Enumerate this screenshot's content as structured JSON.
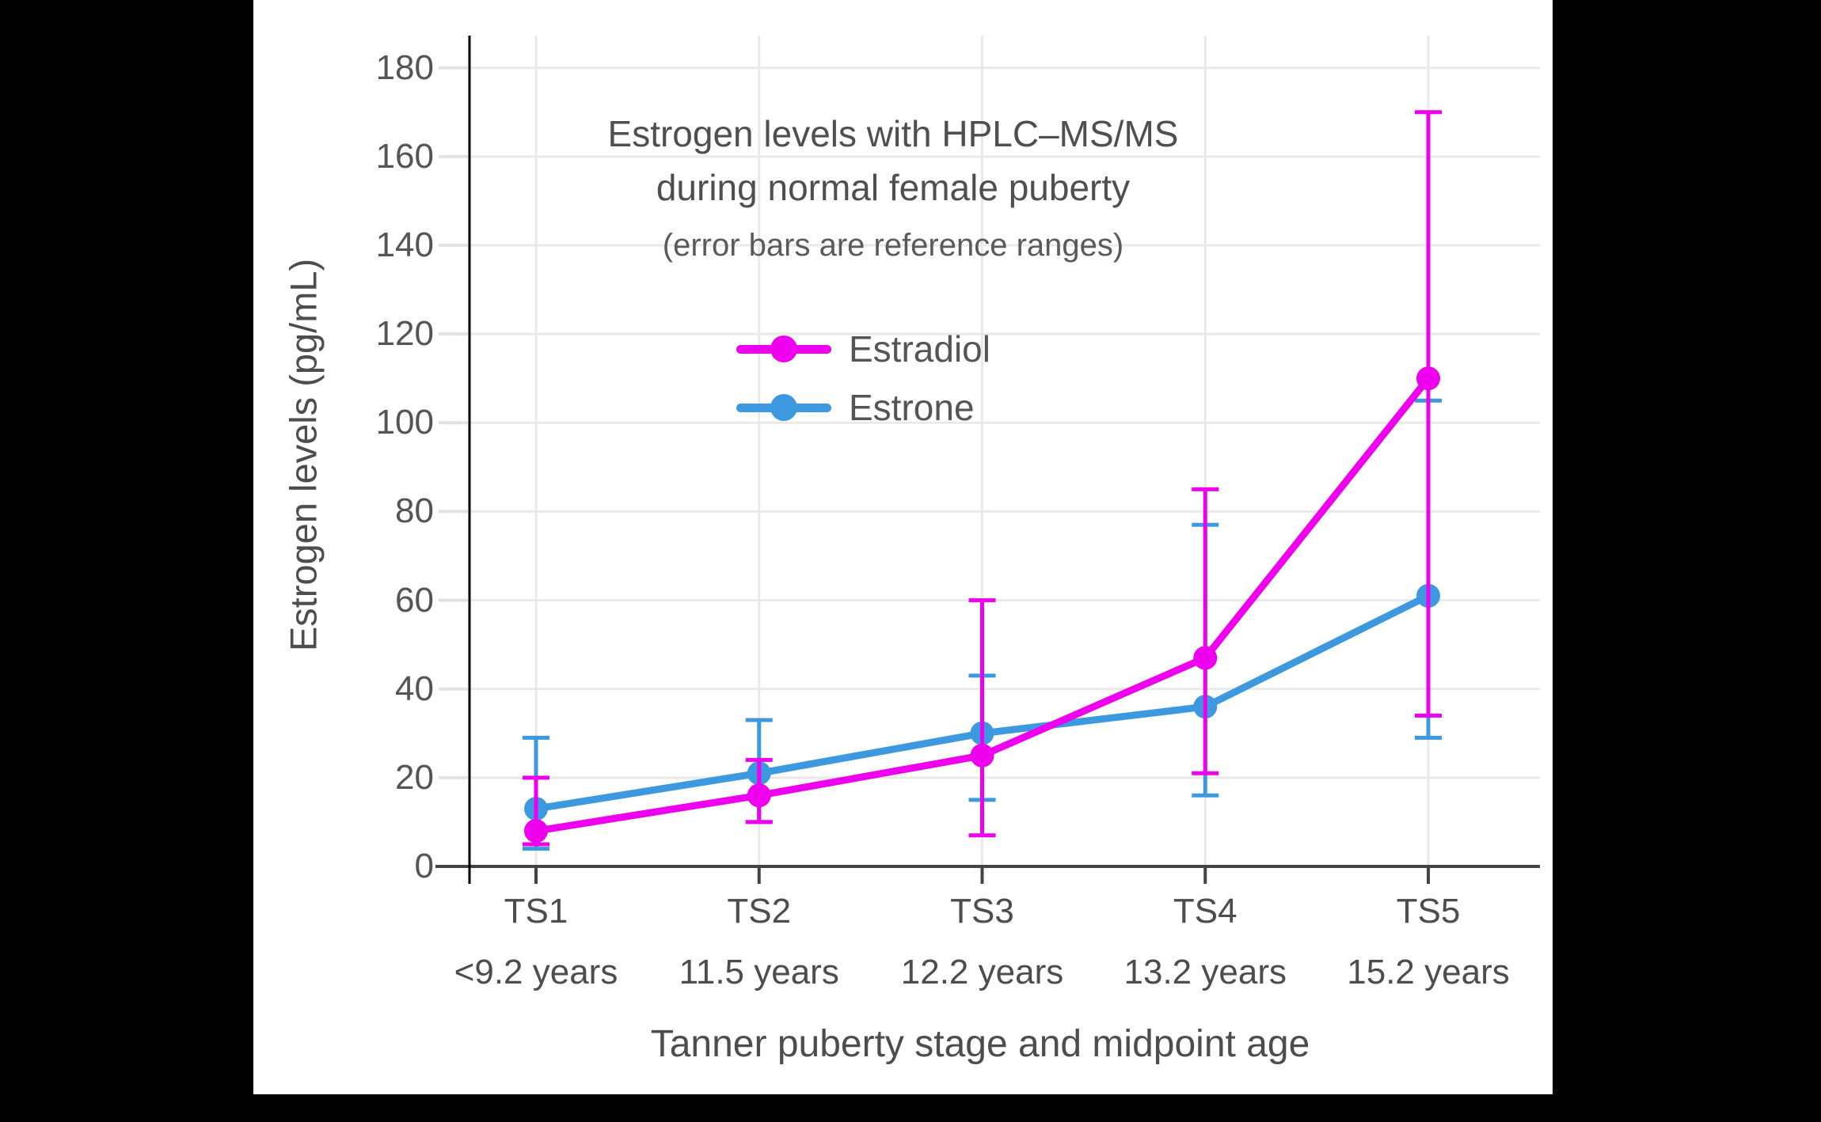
{
  "chart_data": {
    "type": "line",
    "title": "Estrogen levels with HPLC–MS/MS",
    "title_line2": "during normal female puberty",
    "subtitle": "(error bars are reference ranges)",
    "xlabel": "Tanner puberty stage and midpoint age",
    "ylabel": "Estrogen levels (pg/mL)",
    "ylim": [
      0,
      180
    ],
    "yticks": [
      0,
      20,
      40,
      60,
      80,
      100,
      120,
      140,
      160,
      180
    ],
    "grid": true,
    "legend_position": "inside upper-left-of-center",
    "categories": [
      "TS1",
      "TS2",
      "TS3",
      "TS4",
      "TS5"
    ],
    "category_ages": [
      "<9.2 years",
      "11.5 years",
      "12.2 years",
      "13.2 years",
      "15.2 years"
    ],
    "series": [
      {
        "name": "Estradiol",
        "color": "#EE00EE",
        "values": [
          8,
          16,
          25,
          47,
          110
        ],
        "error_low": [
          5,
          10,
          7,
          21,
          34
        ],
        "error_high": [
          20,
          24,
          60,
          85,
          170
        ]
      },
      {
        "name": "Estrone",
        "color": "#3C99E0",
        "values": [
          13,
          21,
          30,
          36,
          61
        ],
        "error_low": [
          4,
          10,
          15,
          16,
          29
        ],
        "error_high": [
          29,
          33,
          43,
          77,
          105
        ]
      }
    ]
  },
  "colors": {
    "background": "#000000",
    "card": "#ffffff",
    "text": "#555555",
    "grid": "#e9e9e9",
    "tick": "#e2e2e2",
    "x_axis": "#444444",
    "y_axis": "#000000"
  }
}
